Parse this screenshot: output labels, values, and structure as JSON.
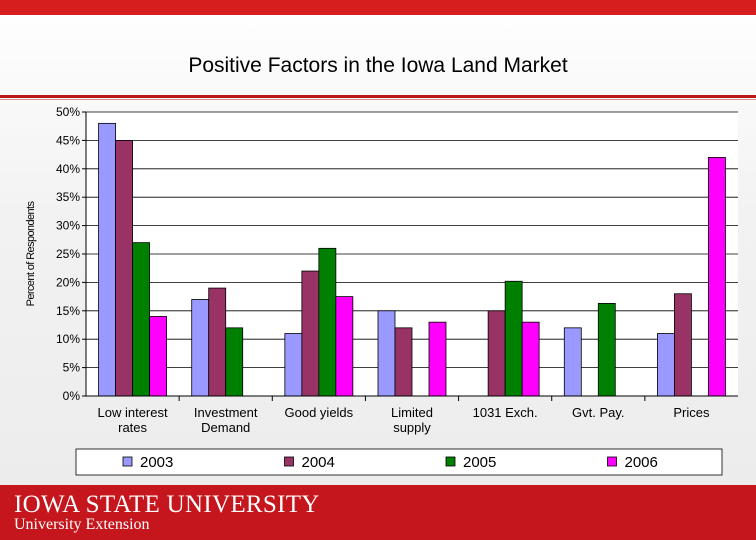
{
  "header": {
    "title": "Positive Factors in the Iowa Land Market"
  },
  "chart_data": {
    "type": "bar",
    "title": "Positive Factors in the Iowa Land Market",
    "xlabel": "",
    "ylabel": "Percent of Respondents",
    "ylim": [
      0,
      50
    ],
    "y_ticks": [
      "0%",
      "5%",
      "10%",
      "15%",
      "20%",
      "25%",
      "30%",
      "35%",
      "40%",
      "45%",
      "50%"
    ],
    "categories": [
      [
        "Low interest",
        "rates"
      ],
      [
        "Investment",
        "Demand"
      ],
      [
        "Good yields"
      ],
      [
        "Limited",
        "supply"
      ],
      [
        "1031 Exch."
      ],
      [
        "Gvt. Pay."
      ],
      [
        "Prices"
      ]
    ],
    "series": [
      {
        "name": "2003",
        "color": "#9999ff",
        "values": [
          48,
          17,
          11,
          15,
          null,
          12,
          11
        ]
      },
      {
        "name": "2004",
        "color": "#993366",
        "values": [
          45,
          19,
          22,
          12,
          15,
          null,
          18
        ]
      },
      {
        "name": "2005",
        "color": "#008000",
        "values": [
          27,
          12,
          26,
          null,
          20.2,
          16.3,
          null
        ]
      },
      {
        "name": "2006",
        "color": "#ff00ff",
        "values": [
          14,
          null,
          17.5,
          13,
          13,
          null,
          42
        ]
      }
    ],
    "legend": "bottom",
    "grid": true
  },
  "footer": {
    "university": "Iowa State University",
    "university_display": "IOWA STATE UNIVERSITY",
    "extension": "University Extension"
  }
}
